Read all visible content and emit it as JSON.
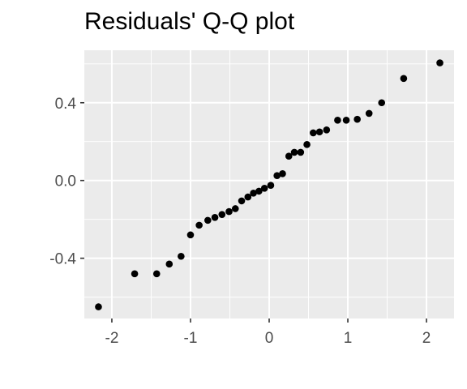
{
  "chart_data": {
    "type": "scatter",
    "title": "Residuals' Q-Q plot",
    "xlabel": "",
    "ylabel": "",
    "xlim": [
      -2.35,
      2.35
    ],
    "ylim": [
      -0.71,
      0.67
    ],
    "x_ticks": [
      -2,
      -1,
      0,
      1,
      2
    ],
    "x_tick_labels": [
      "-2",
      "-1",
      "0",
      "1",
      "2"
    ],
    "y_ticks": [
      -0.4,
      0.0,
      0.4
    ],
    "y_tick_labels": [
      "-0.4",
      "0.0",
      "0.4"
    ],
    "grid": true,
    "legend": "none",
    "colors": {
      "panel": "#ebebeb",
      "grid": "#ffffff",
      "point": "#000000",
      "tick_text": "#4d4d4d",
      "tick_mark": "#333333"
    },
    "points": [
      {
        "x": -2.17,
        "y": -0.65
      },
      {
        "x": -1.71,
        "y": -0.48
      },
      {
        "x": -1.43,
        "y": -0.48
      },
      {
        "x": -1.27,
        "y": -0.43
      },
      {
        "x": -1.12,
        "y": -0.39
      },
      {
        "x": -1.0,
        "y": -0.28
      },
      {
        "x": -0.89,
        "y": -0.23
      },
      {
        "x": -0.78,
        "y": -0.205
      },
      {
        "x": -0.69,
        "y": -0.19
      },
      {
        "x": -0.6,
        "y": -0.175
      },
      {
        "x": -0.51,
        "y": -0.16
      },
      {
        "x": -0.43,
        "y": -0.145
      },
      {
        "x": -0.35,
        "y": -0.105
      },
      {
        "x": -0.27,
        "y": -0.085
      },
      {
        "x": -0.2,
        "y": -0.065
      },
      {
        "x": -0.13,
        "y": -0.055
      },
      {
        "x": -0.06,
        "y": -0.04
      },
      {
        "x": 0.02,
        "y": -0.025
      },
      {
        "x": 0.1,
        "y": 0.025
      },
      {
        "x": 0.17,
        "y": 0.035
      },
      {
        "x": 0.25,
        "y": 0.125
      },
      {
        "x": 0.32,
        "y": 0.145
      },
      {
        "x": 0.4,
        "y": 0.145
      },
      {
        "x": 0.48,
        "y": 0.185
      },
      {
        "x": 0.56,
        "y": 0.245
      },
      {
        "x": 0.64,
        "y": 0.25
      },
      {
        "x": 0.73,
        "y": 0.26
      },
      {
        "x": 0.87,
        "y": 0.31
      },
      {
        "x": 0.98,
        "y": 0.31
      },
      {
        "x": 1.12,
        "y": 0.315
      },
      {
        "x": 1.27,
        "y": 0.345
      },
      {
        "x": 1.43,
        "y": 0.4
      },
      {
        "x": 1.71,
        "y": 0.525
      },
      {
        "x": 2.17,
        "y": 0.605
      }
    ]
  }
}
